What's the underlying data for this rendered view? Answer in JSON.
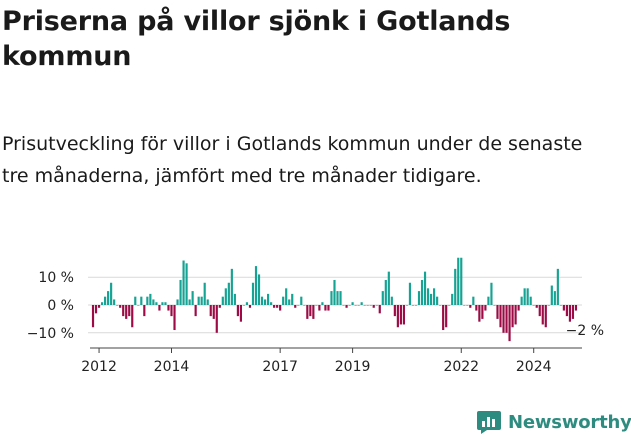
{
  "title": "Priserna på villor sjönk i Gotlands kommun",
  "subtitle": "Prisutveckling för villor i Gotlands kommun under de senaste tre månaderna, jämfört med tre månader tidigare.",
  "brand": {
    "name": "Newsworthy",
    "color": "#2e8b80"
  },
  "chart_data": {
    "type": "bar",
    "x_start": "2011-10",
    "x_end": "2025-05",
    "x_ticks": [
      {
        "date": "2012-01",
        "label": "2012"
      },
      {
        "date": "2014-01",
        "label": "2014"
      },
      {
        "date": "2017-01",
        "label": "2017"
      },
      {
        "date": "2019-01",
        "label": "2019"
      },
      {
        "date": "2022-01",
        "label": "2022"
      },
      {
        "date": "2024-01",
        "label": "2024"
      }
    ],
    "ylim": [
      -14,
      17
    ],
    "y_ticks": [
      {
        "value": 10,
        "label": "10 %"
      },
      {
        "value": 0,
        "label": "0 %"
      },
      {
        "value": -10,
        "label": "−10 %"
      }
    ],
    "positive_color": "#16a394",
    "negative_color": "#9c0b45",
    "end_label": "−2 %",
    "series": [
      {
        "start": "2011-11",
        "values": [
          -8,
          -3,
          -1,
          1,
          3,
          5,
          8,
          2,
          0,
          -1,
          -4,
          -5,
          -4,
          -8,
          3,
          0,
          3,
          -4,
          3,
          4,
          2,
          1,
          -2,
          1,
          1,
          -2,
          -4,
          -9,
          2,
          9,
          16,
          15,
          2,
          5,
          -4,
          3,
          3,
          8,
          2,
          -4,
          -5,
          -10,
          -1,
          3,
          6,
          8,
          13,
          4,
          -4,
          -6,
          0,
          1,
          -1,
          8,
          14,
          11,
          3,
          2,
          4,
          1,
          -1,
          -1,
          -2,
          3,
          6,
          2,
          4,
          -1,
          0,
          3,
          0,
          -5,
          -4,
          -5,
          0,
          -2,
          1,
          -2,
          -2,
          5,
          9,
          5,
          5,
          0,
          -1,
          0,
          1,
          0,
          0,
          1,
          0,
          0,
          0,
          -1,
          0,
          -3,
          5,
          9,
          12,
          3,
          -4,
          -8,
          -7,
          -7,
          0,
          8,
          0,
          0,
          5,
          9,
          12,
          6,
          4,
          6,
          3,
          0,
          -9,
          -8,
          0,
          4,
          13,
          17,
          17,
          0,
          0,
          -1,
          3,
          -2,
          -6,
          -5,
          -2,
          3,
          8,
          0,
          -5,
          -8,
          -10,
          -10,
          -13,
          -8,
          -7,
          -2,
          3,
          6,
          6,
          3,
          0,
          -1,
          -4,
          -7,
          -8,
          0,
          7,
          5,
          13,
          0,
          -2,
          -4,
          -6,
          -5,
          -2
        ]
      }
    ]
  }
}
